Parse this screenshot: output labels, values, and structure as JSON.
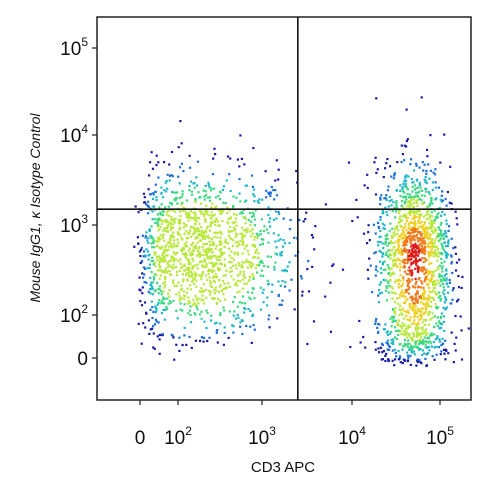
{
  "chart_data": {
    "type": "scatter",
    "subtype": "flow-cytometry-density-dot-plot",
    "xlabel": "CD3 APC",
    "ylabel": "Mouse IgG1, κ Isotype Control",
    "x_scale": "biexponential",
    "y_scale": "biexponential",
    "x_ticks": [
      {
        "value": 0,
        "label": "0"
      },
      {
        "value": 100,
        "label": "10",
        "exp": "2"
      },
      {
        "value": 1000,
        "label": "10",
        "exp": "3"
      },
      {
        "value": 10000,
        "label": "10",
        "exp": "4"
      },
      {
        "value": 100000,
        "label": "10",
        "exp": "5"
      }
    ],
    "y_ticks": [
      {
        "value": 0,
        "label": "0"
      },
      {
        "value": 100,
        "label": "10",
        "exp": "2"
      },
      {
        "value": 1000,
        "label": "10",
        "exp": "3"
      },
      {
        "value": 10000,
        "label": "10",
        "exp": "4"
      },
      {
        "value": 100000,
        "label": "10",
        "exp": "5"
      }
    ],
    "quadrant_gate": {
      "x": 2500,
      "y": 1500
    },
    "populations": [
      {
        "name": "",
        "center": {
          "x": 180,
          "y": 500
        },
        "spread_x_decades": 0.55,
        "spread_y_decades": 0.45,
        "n": 1400
      },
      {
        "name": "",
        "center": {
          "x": 50000,
          "y": 450
        },
        "spread_x_decades": 0.22,
        "spread_y_decades": 0.5,
        "n": 1500
      }
    ],
    "grid": false,
    "density_colors": [
      "#1a1aa8",
      "#1f6fd8",
      "#20b8c8",
      "#3cd880",
      "#b8e83a",
      "#f0d020",
      "#f07818",
      "#e01818"
    ]
  }
}
